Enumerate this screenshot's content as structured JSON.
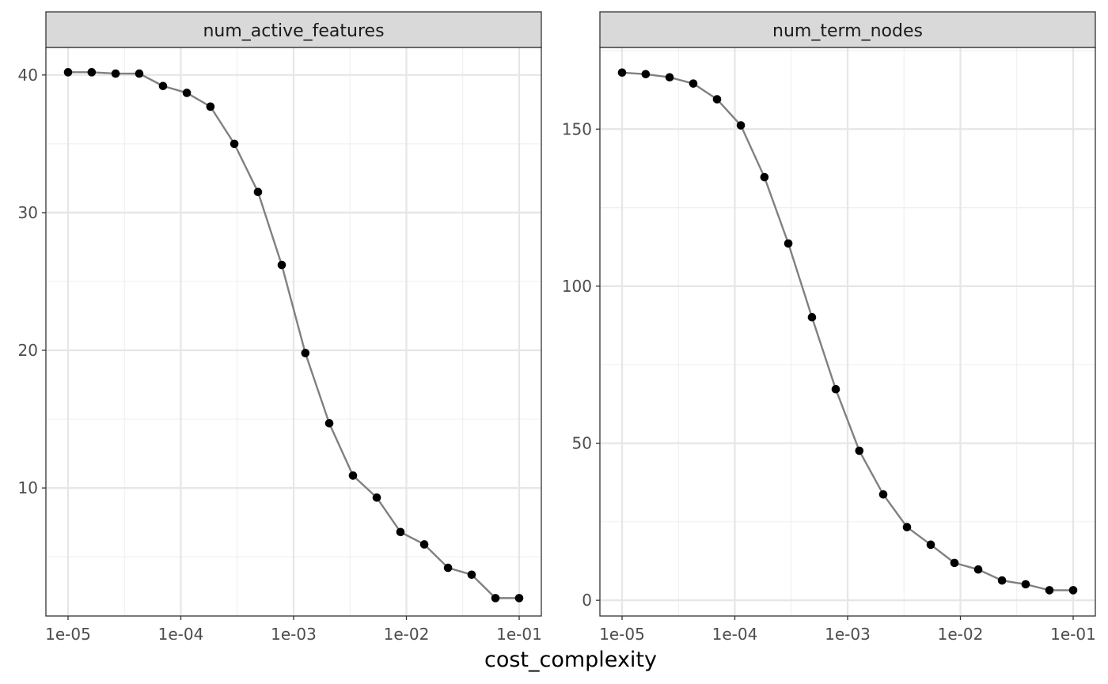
{
  "chart_data": {
    "type": "line",
    "xlabel": "cost_complexity",
    "x_scale": "log10",
    "x_ticks": [
      1e-05,
      0.0001,
      0.001,
      0.01,
      0.1
    ],
    "x_tick_labels": [
      "1e-05",
      "1e-04",
      "1e-03",
      "1e-02",
      "1e-01"
    ],
    "grid": true,
    "point_color": "#000000",
    "line_color": "#808080",
    "strip_color": "#d9d9d9",
    "panels": [
      {
        "title": "num_active_features",
        "ylim": [
          0.7,
          42.0
        ],
        "y_ticks": [
          10,
          20,
          30,
          40
        ],
        "y_tick_labels": [
          "10",
          "20",
          "30",
          "40"
        ],
        "x": [
          1e-05,
          1.62e-05,
          2.64e-05,
          4.28e-05,
          6.95e-05,
          0.000113,
          0.000183,
          0.000298,
          0.000483,
          0.000785,
          0.00127,
          0.00207,
          0.00336,
          0.00546,
          0.00886,
          0.0144,
          0.0234,
          0.0379,
          0.0616,
          0.1
        ],
        "y": [
          40.2,
          40.2,
          40.1,
          40.1,
          39.2,
          38.7,
          37.7,
          35.0,
          31.5,
          26.2,
          19.8,
          14.7,
          10.9,
          9.3,
          6.8,
          5.9,
          4.2,
          3.7,
          2.0,
          2.0
        ]
      },
      {
        "title": "num_term_nodes",
        "ylim": [
          -5,
          176
        ],
        "y_ticks": [
          0,
          50,
          100,
          150
        ],
        "y_tick_labels": [
          "0",
          "50",
          "100",
          "150"
        ],
        "x": [
          1e-05,
          1.62e-05,
          2.64e-05,
          4.28e-05,
          6.95e-05,
          0.000113,
          0.000183,
          0.000298,
          0.000483,
          0.000785,
          0.00127,
          0.00207,
          0.00336,
          0.00546,
          0.00886,
          0.0144,
          0.0234,
          0.0379,
          0.0616,
          0.1
        ],
        "y": [
          168,
          167.5,
          166.5,
          164.5,
          159.5,
          151.2,
          134.7,
          113.6,
          90.1,
          67.2,
          47.6,
          33.7,
          23.3,
          17.7,
          11.9,
          9.8,
          6.3,
          5.1,
          3.2,
          3.2
        ]
      }
    ]
  }
}
